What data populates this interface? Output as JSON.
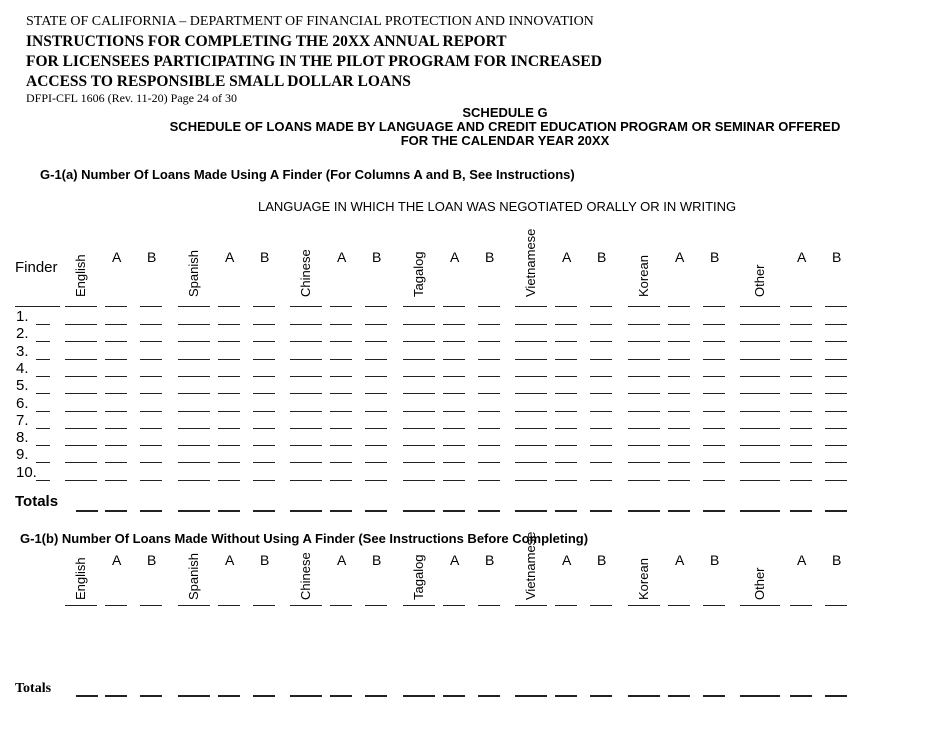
{
  "header": {
    "agency": "STATE OF CALIFORNIA – DEPARTMENT OF FINANCIAL PROTECTION AND INNOVATION",
    "title_lines": [
      "INSTRUCTIONS FOR COMPLETING THE 20XX ANNUAL REPORT",
      "FOR LICENSEES PARTICIPATING IN THE PILOT PROGRAM FOR INCREASED",
      "ACCESS TO RESPONSIBLE SMALL DOLLAR LOANS"
    ],
    "form_id": "DFPI-CFL 1606 (Rev. 11-20) Page 24 of 30"
  },
  "schedule": {
    "name": "SCHEDULE G",
    "title": "SCHEDULE OF LOANS MADE BY LANGUAGE AND CREDIT EDUCATION PROGRAM OR SEMINAR OFFERED",
    "year": "FOR THE CALENDAR YEAR 20XX"
  },
  "section_a": {
    "heading": "G-1(a) Number Of Loans Made Using A Finder (For Columns A and B, See Instructions)",
    "language_caption": "LANGUAGE IN WHICH THE LOAN WAS NEGOTIATED ORALLY OR IN WRITING",
    "finder_label": "Finder",
    "row_labels": [
      "1.",
      "2.",
      "3.",
      "4.",
      "5.",
      "6.",
      "7.",
      "8.",
      "9.",
      "10."
    ],
    "totals_label": "Totals"
  },
  "section_b": {
    "heading": "G-1(b) Number Of Loans Made Without Using A Finder (See Instructions Before Completing)",
    "totals_label": "Totals"
  },
  "languages": [
    "English",
    "Spanish",
    "Chinese",
    "Tagalog",
    "Vietnamese",
    "Korean",
    "Other"
  ],
  "sub_columns": [
    "A",
    "B"
  ]
}
